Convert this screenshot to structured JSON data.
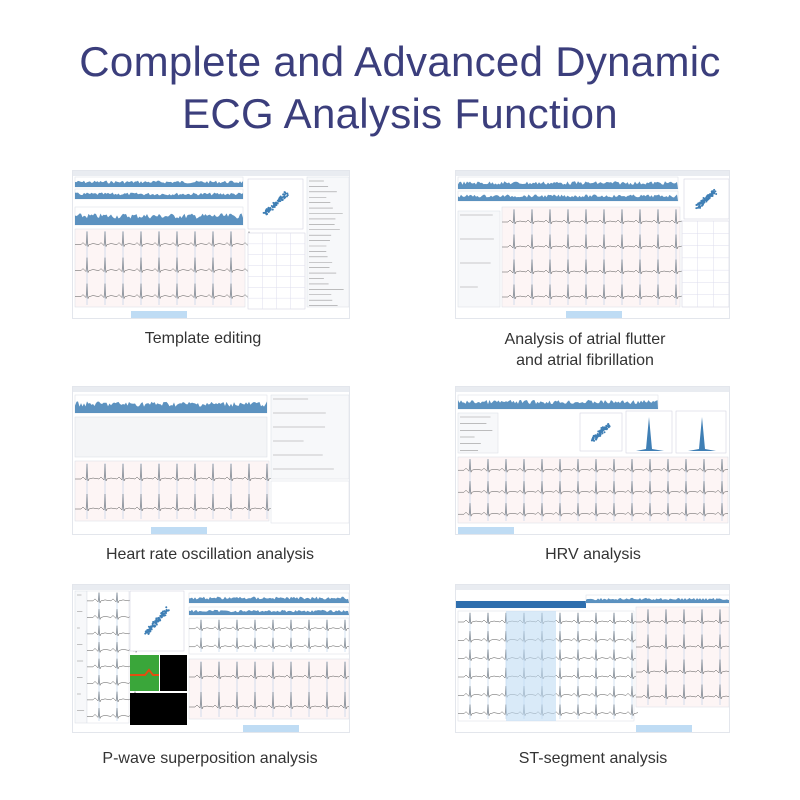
{
  "title": {
    "line1": "Complete and Advanced Dynamic",
    "line2": "ECG Analysis Function"
  },
  "accent_color": "#3b3e7c",
  "panels": [
    {
      "caption": "Template editing"
    },
    {
      "caption_line1": "Analysis of atrial flutter",
      "caption_line2": "and atrial fibrillation"
    },
    {
      "caption": "Heart rate oscillation analysis"
    },
    {
      "caption": "HRV analysis"
    },
    {
      "caption": "P-wave superposition analysis"
    },
    {
      "caption": "ST-segment analysis"
    }
  ]
}
